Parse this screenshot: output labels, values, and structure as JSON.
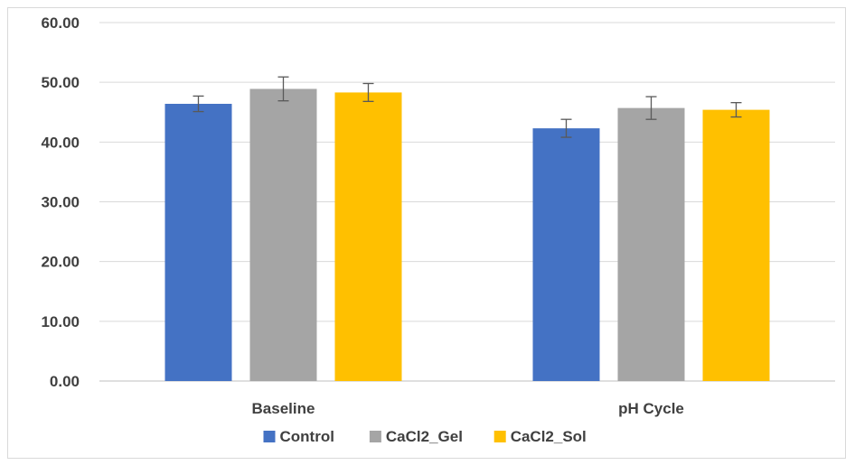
{
  "chart_data": {
    "type": "bar",
    "categories": [
      "Baseline",
      "pH Cycle"
    ],
    "series": [
      {
        "name": "Control",
        "color": "#4472c4",
        "values": [
          46.4,
          42.3
        ],
        "errors": [
          1.3,
          1.5
        ]
      },
      {
        "name": "CaCl2_Gel",
        "color": "#a5a5a5",
        "values": [
          48.9,
          45.7
        ],
        "errors": [
          2.0,
          1.9
        ]
      },
      {
        "name": "CaCl2_Sol",
        "color": "#ffc000",
        "values": [
          48.3,
          45.4
        ],
        "errors": [
          1.5,
          1.2
        ]
      }
    ],
    "y_ticks": [
      "0.00",
      "10.00",
      "20.00",
      "30.00",
      "40.00",
      "50.00",
      "60.00"
    ],
    "ylim": [
      0,
      60
    ],
    "grid": true,
    "legend_position": "bottom",
    "title": "",
    "xlabel": "",
    "ylabel": ""
  }
}
